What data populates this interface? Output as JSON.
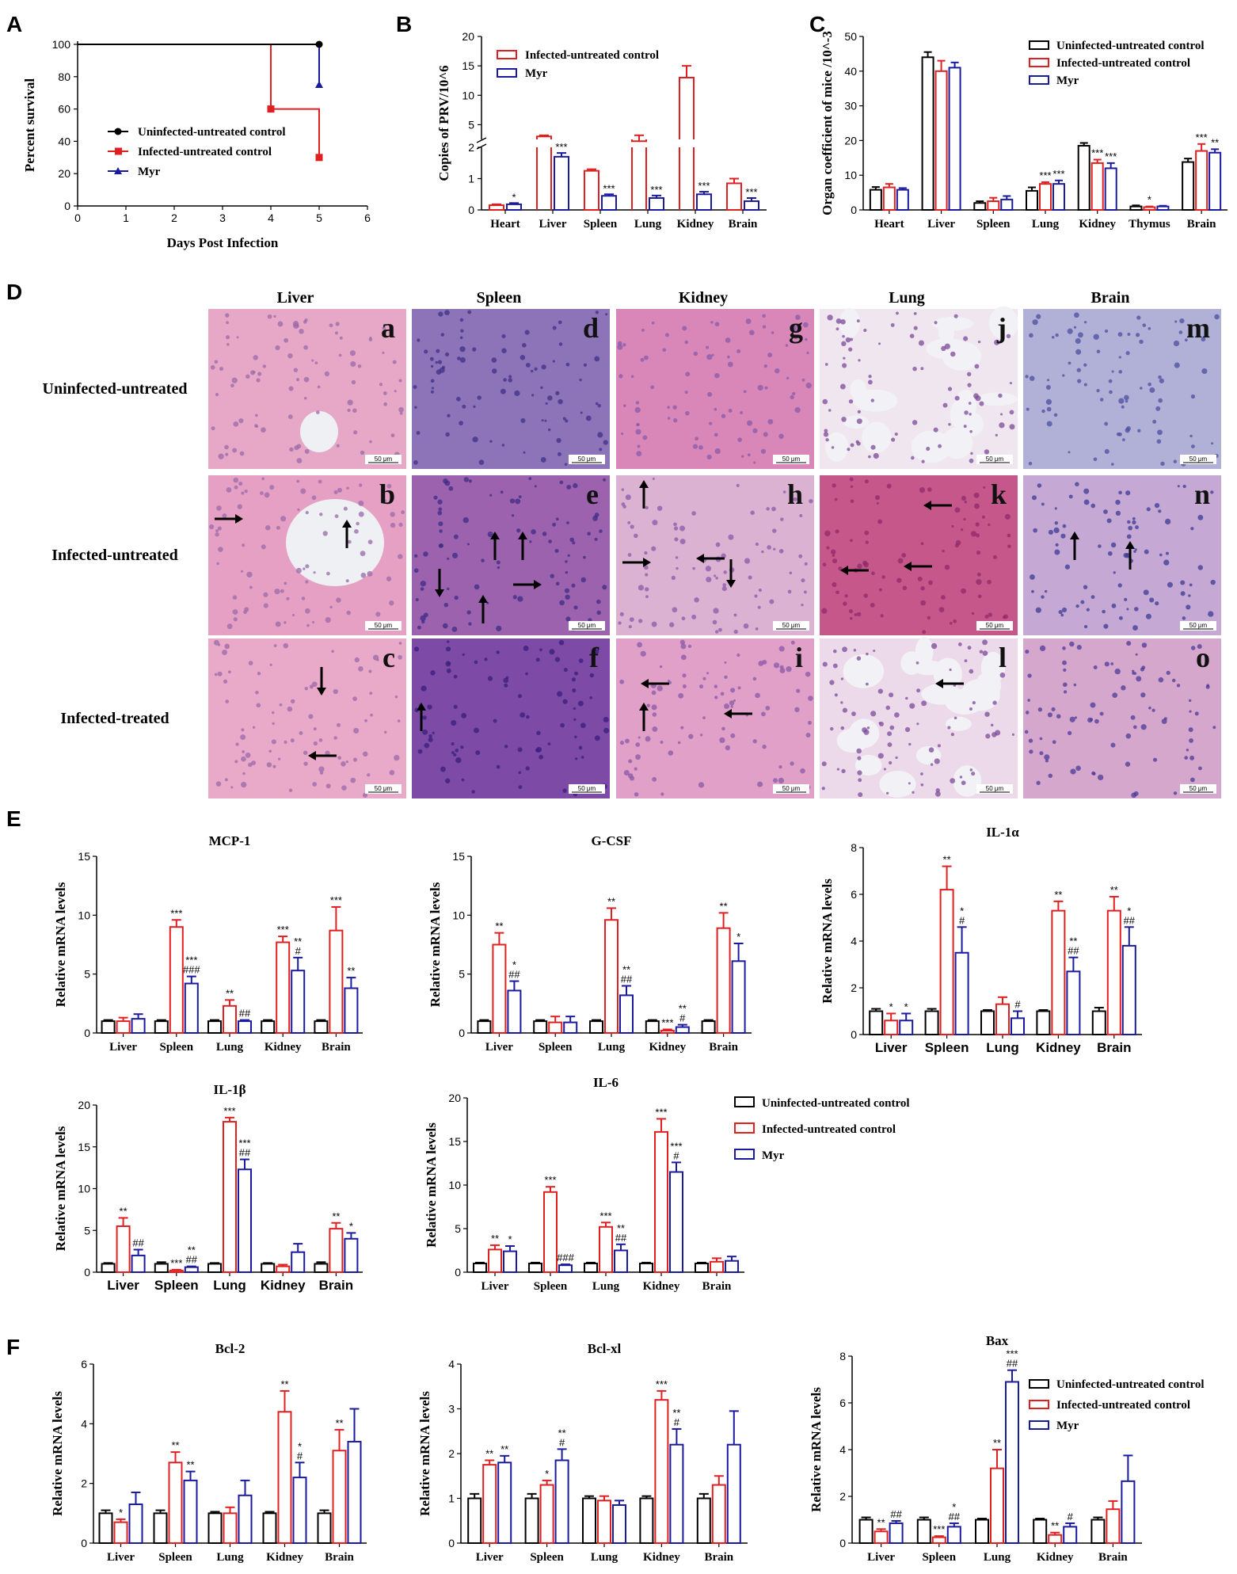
{
  "colors": {
    "uninfected": "#000000",
    "infected": "#e02020",
    "myr": "#1a1a9e"
  },
  "panel_letters": [
    "A",
    "B",
    "C",
    "D",
    "E",
    "F"
  ],
  "legend_labels": {
    "uninfected": "Uninfected-untreated control",
    "infected": "Infected-untreated control",
    "myr": "Myr"
  },
  "histology": {
    "columns": [
      "Liver",
      "Spleen",
      "Kidney",
      "Lung",
      "Brain"
    ],
    "rows": [
      "Uninfected-untreated",
      "Infected-untreated",
      "Infected-treated"
    ],
    "letters": [
      [
        "a",
        "d",
        "g",
        "j",
        "m"
      ],
      [
        "b",
        "e",
        "h",
        "k",
        "n"
      ],
      [
        "c",
        "f",
        "i",
        "l",
        "o"
      ]
    ],
    "scale_bar": "50 μm"
  },
  "chart_data": [
    {
      "id": "A",
      "type": "line",
      "xlabel": "Days Post Infection",
      "ylabel": "Percent survival",
      "xlim": [
        0,
        6
      ],
      "ylim": [
        0,
        100
      ],
      "xticks": [
        "0",
        "1",
        "2",
        "3",
        "4",
        "5",
        "6"
      ],
      "yticks": [
        "0",
        "20",
        "40",
        "60",
        "80",
        "100"
      ],
      "legend": "inside-right",
      "series": [
        {
          "name": "Uninfected-untreated control",
          "marker": "circle",
          "x": [
            0,
            5
          ],
          "y": [
            100,
            100
          ]
        },
        {
          "name": "Infected-untreated control",
          "marker": "square",
          "x": [
            0,
            4,
            4,
            5,
            5
          ],
          "y": [
            100,
            100,
            60,
            60,
            30
          ]
        },
        {
          "name": "Myr",
          "marker": "triangle",
          "x": [
            0,
            5,
            5
          ],
          "y": [
            100,
            100,
            75
          ]
        }
      ]
    },
    {
      "id": "B",
      "type": "bar",
      "ylabel": "Copies of PRV/10^6",
      "broken_axis": true,
      "yticks_upper": [
        "5",
        "10",
        "15",
        "20"
      ],
      "yticks_lower": [
        "0",
        "1",
        "2"
      ],
      "categories": [
        "Heart",
        "Liver",
        "Spleen",
        "Lung",
        "Kidney",
        "Brain"
      ],
      "series": [
        {
          "name": "Infected-untreated control",
          "values": [
            0.15,
            3.0,
            1.25,
            2.2,
            13.0,
            0.85
          ],
          "errors": [
            0.03,
            0.2,
            0.05,
            1.0,
            2.0,
            0.15
          ]
        },
        {
          "name": "Myr",
          "values": [
            0.18,
            1.7,
            0.45,
            0.38,
            0.5,
            0.28
          ],
          "errors": [
            0.04,
            0.12,
            0.05,
            0.08,
            0.08,
            0.1
          ]
        }
      ],
      "significance": {
        "Myr": [
          "*",
          "***",
          "***",
          "***",
          "***",
          "***"
        ]
      }
    },
    {
      "id": "C",
      "type": "bar",
      "ylabel": "Organ coefficient of mice /10^-3",
      "ylim": [
        0,
        50
      ],
      "yticks": [
        "0",
        "10",
        "20",
        "30",
        "40",
        "50"
      ],
      "categories": [
        "Heart",
        "Liver",
        "Spleen",
        "Lung",
        "Kidney",
        "Thymus",
        "Brain"
      ],
      "series": [
        {
          "name": "Uninfected-untreated control",
          "values": [
            5.8,
            44.0,
            2.0,
            5.5,
            18.5,
            1.0,
            13.8
          ],
          "errors": [
            0.8,
            1.5,
            0.5,
            1.0,
            0.8,
            0.3,
            1.0
          ]
        },
        {
          "name": "Infected-untreated control",
          "values": [
            6.5,
            40.0,
            2.5,
            7.5,
            13.5,
            0.8,
            17.0
          ],
          "errors": [
            1.0,
            3.0,
            1.0,
            0.5,
            1.0,
            0.2,
            2.0
          ]
        },
        {
          "name": "Myr",
          "values": [
            5.8,
            41.0,
            3.0,
            7.5,
            12.0,
            1.0,
            16.5
          ],
          "errors": [
            0.5,
            1.5,
            1.0,
            1.0,
            1.5,
            0.2,
            1.0
          ]
        }
      ],
      "significance": {
        "Infected-untreated control": [
          "",
          "",
          "",
          "***",
          "***",
          "*",
          "***"
        ],
        "Myr": [
          "",
          "",
          "",
          "***",
          "***",
          "",
          "**"
        ]
      }
    },
    {
      "id": "E1",
      "type": "bar",
      "title": "MCP-1",
      "ylabel": "Relative mRNA levels",
      "ylim": [
        0,
        15
      ],
      "yticks": [
        "0",
        "5",
        "10",
        "15"
      ],
      "categories": [
        "Liver",
        "Spleen",
        "Lung",
        "Kidney",
        "Brain"
      ],
      "series": [
        {
          "name": "Uninfected-untreated control",
          "values": [
            1.0,
            1.0,
            1.0,
            1.0,
            1.0
          ],
          "errors": [
            0.1,
            0.1,
            0.1,
            0.1,
            0.1
          ]
        },
        {
          "name": "Infected-untreated control",
          "values": [
            1.0,
            9.0,
            2.3,
            7.7,
            8.7
          ],
          "errors": [
            0.3,
            0.6,
            0.5,
            0.5,
            2.0
          ]
        },
        {
          "name": "Myr",
          "values": [
            1.2,
            4.2,
            1.0,
            5.3,
            3.8
          ],
          "errors": [
            0.4,
            0.6,
            0.1,
            1.1,
            0.9
          ]
        }
      ],
      "significance": {
        "Infected-untreated control": [
          "",
          "***",
          "**",
          "***",
          "***"
        ],
        "Myr": [
          "",
          "***\n###",
          "##",
          "**\n#",
          "**"
        ]
      }
    },
    {
      "id": "E2",
      "type": "bar",
      "title": "G-CSF",
      "ylabel": "Relative mRNA levels",
      "ylim": [
        0,
        15
      ],
      "yticks": [
        "0",
        "5",
        "10",
        "15"
      ],
      "categories": [
        "Liver",
        "Spleen",
        "Lung",
        "Kidney",
        "Brain"
      ],
      "series": [
        {
          "name": "Uninfected-untreated control",
          "values": [
            1.0,
            1.0,
            1.0,
            1.0,
            1.0
          ],
          "errors": [
            0.1,
            0.1,
            0.1,
            0.1,
            0.1
          ]
        },
        {
          "name": "Infected-untreated control",
          "values": [
            7.5,
            0.9,
            9.6,
            0.2,
            8.9
          ],
          "errors": [
            1.0,
            0.5,
            1.0,
            0.1,
            1.3
          ]
        },
        {
          "name": "Myr",
          "values": [
            3.6,
            0.9,
            3.2,
            0.5,
            6.1
          ],
          "errors": [
            0.8,
            0.5,
            0.8,
            0.2,
            1.5
          ]
        }
      ],
      "significance": {
        "Infected-untreated control": [
          "**",
          "",
          "**",
          "***",
          "**"
        ],
        "Myr": [
          "*\n##",
          "",
          "**\n##",
          "**\n#",
          "*"
        ]
      }
    },
    {
      "id": "E3",
      "type": "bar",
      "title": "IL-1α",
      "ylabel": "Relative mRNA levels",
      "ylim": [
        0,
        8
      ],
      "yticks": [
        "0",
        "2",
        "4",
        "6",
        "8"
      ],
      "categories": [
        "Liver",
        "Spleen",
        "Lung",
        "Kidney",
        "Brain"
      ],
      "series": [
        {
          "name": "Uninfected-untreated control",
          "values": [
            1.0,
            1.0,
            1.0,
            1.0,
            1.0
          ],
          "errors": [
            0.1,
            0.1,
            0.05,
            0.05,
            0.15
          ]
        },
        {
          "name": "Infected-untreated control",
          "values": [
            0.6,
            6.2,
            1.3,
            5.3,
            5.3
          ],
          "errors": [
            0.3,
            1.0,
            0.3,
            0.4,
            0.6
          ]
        },
        {
          "name": "Myr",
          "values": [
            0.6,
            3.5,
            0.7,
            2.7,
            3.8
          ],
          "errors": [
            0.3,
            1.1,
            0.3,
            0.6,
            0.8
          ]
        }
      ],
      "significance": {
        "Infected-untreated control": [
          "*",
          "**",
          "",
          "**",
          "**"
        ],
        "Myr": [
          "*",
          "*\n#",
          "#",
          "**\n##",
          "*\n##"
        ]
      }
    },
    {
      "id": "E4",
      "type": "bar",
      "title": "IL-1β",
      "ylabel": "Relative mRNA levels",
      "ylim": [
        0,
        20
      ],
      "yticks": [
        "0",
        "5",
        "10",
        "15",
        "20"
      ],
      "categories": [
        "Liver",
        "Spleen",
        "Lung",
        "Kidney",
        "Brain"
      ],
      "series": [
        {
          "name": "Uninfected-untreated control",
          "values": [
            1.0,
            1.0,
            1.0,
            1.0,
            1.0
          ],
          "errors": [
            0.1,
            0.2,
            0.1,
            0.1,
            0.2
          ]
        },
        {
          "name": "Infected-untreated control",
          "values": [
            5.5,
            0.2,
            18.0,
            0.7,
            5.2
          ],
          "errors": [
            1.0,
            0.1,
            0.5,
            0.2,
            0.7
          ]
        },
        {
          "name": "Myr",
          "values": [
            2.0,
            0.6,
            12.3,
            2.4,
            4.0
          ],
          "errors": [
            0.7,
            0.1,
            1.2,
            1.0,
            0.7
          ]
        }
      ],
      "significance": {
        "Infected-untreated control": [
          "**",
          "***",
          "***",
          "",
          "**"
        ],
        "Myr": [
          "##",
          "**\n##",
          "***\n##",
          "",
          "*"
        ]
      }
    },
    {
      "id": "E5",
      "type": "bar",
      "title": "IL-6",
      "ylabel": "Relative mRNA levels",
      "ylim": [
        0,
        20
      ],
      "yticks": [
        "0",
        "5",
        "10",
        "15",
        "20"
      ],
      "categories": [
        "Liver",
        "Spleen",
        "Lung",
        "Kidney",
        "Brain"
      ],
      "series": [
        {
          "name": "Uninfected-untreated control",
          "values": [
            1.0,
            1.0,
            1.0,
            1.0,
            1.0
          ],
          "errors": [
            0.1,
            0.1,
            0.1,
            0.1,
            0.1
          ]
        },
        {
          "name": "Infected-untreated control",
          "values": [
            2.6,
            9.2,
            5.2,
            16.1,
            1.2
          ],
          "errors": [
            0.5,
            0.6,
            0.5,
            1.5,
            0.4
          ]
        },
        {
          "name": "Myr",
          "values": [
            2.4,
            0.8,
            2.5,
            11.5,
            1.3
          ],
          "errors": [
            0.6,
            0.1,
            0.7,
            1.1,
            0.5
          ]
        }
      ],
      "significance": {
        "Infected-untreated control": [
          "**",
          "***",
          "***",
          "***",
          ""
        ],
        "Myr": [
          "*",
          "###",
          "**\n##",
          "***\n#",
          ""
        ]
      }
    },
    {
      "id": "F1",
      "type": "bar",
      "title": "Bcl-2",
      "ylabel": "Relative mRNA levels",
      "ylim": [
        0,
        6
      ],
      "yticks": [
        "0",
        "2",
        "4",
        "6"
      ],
      "categories": [
        "Liver",
        "Spleen",
        "Lung",
        "Kidney",
        "Brain"
      ],
      "series": [
        {
          "name": "Uninfected-untreated control",
          "values": [
            1.0,
            1.0,
            1.0,
            1.0,
            1.0
          ],
          "errors": [
            0.1,
            0.1,
            0.05,
            0.05,
            0.1
          ]
        },
        {
          "name": "Infected-untreated control",
          "values": [
            0.7,
            2.7,
            1.0,
            4.4,
            3.1
          ],
          "errors": [
            0.1,
            0.35,
            0.2,
            0.7,
            0.7
          ]
        },
        {
          "name": "Myr",
          "values": [
            1.3,
            2.1,
            1.6,
            2.2,
            3.4
          ],
          "errors": [
            0.4,
            0.3,
            0.5,
            0.5,
            1.1
          ]
        }
      ],
      "significance": {
        "Infected-untreated control": [
          "*",
          "**",
          "",
          "**",
          "**"
        ],
        "Myr": [
          "",
          "**",
          "",
          "*\n#",
          ""
        ]
      }
    },
    {
      "id": "F2",
      "type": "bar",
      "title": "Bcl-xl",
      "ylabel": "Relative mRNA levels",
      "ylim": [
        0,
        4
      ],
      "yticks": [
        "0",
        "1",
        "2",
        "3",
        "4"
      ],
      "categories": [
        "Liver",
        "Spleen",
        "Lung",
        "Kidney",
        "Brain"
      ],
      "series": [
        {
          "name": "Uninfected-untreated control",
          "values": [
            1.0,
            1.0,
            1.0,
            1.0,
            1.0
          ],
          "errors": [
            0.1,
            0.1,
            0.05,
            0.05,
            0.1
          ]
        },
        {
          "name": "Infected-untreated control",
          "values": [
            1.75,
            1.3,
            0.95,
            3.2,
            1.3
          ],
          "errors": [
            0.1,
            0.1,
            0.1,
            0.2,
            0.2
          ]
        },
        {
          "name": "Myr",
          "values": [
            1.8,
            1.85,
            0.85,
            2.2,
            2.2
          ],
          "errors": [
            0.15,
            0.25,
            0.1,
            0.35,
            0.75
          ]
        }
      ],
      "significance": {
        "Infected-untreated control": [
          "**",
          "*",
          "",
          "***",
          ""
        ],
        "Myr": [
          "**",
          "**\n#",
          "",
          "**\n#",
          ""
        ]
      }
    },
    {
      "id": "F3",
      "type": "bar",
      "title": "Bax",
      "ylabel": "Relative mRNA levels",
      "ylim": [
        0,
        8
      ],
      "yticks": [
        "0",
        "2",
        "4",
        "6",
        "8"
      ],
      "categories": [
        "Liver",
        "Spleen",
        "Lung",
        "Kidney",
        "Brain"
      ],
      "series": [
        {
          "name": "Uninfected-untreated control",
          "values": [
            1.0,
            1.0,
            1.0,
            1.0,
            1.0
          ],
          "errors": [
            0.1,
            0.1,
            0.05,
            0.05,
            0.1
          ]
        },
        {
          "name": "Infected-untreated control",
          "values": [
            0.5,
            0.25,
            3.2,
            0.35,
            1.45
          ],
          "errors": [
            0.1,
            0.05,
            0.8,
            0.1,
            0.35
          ]
        },
        {
          "name": "Myr",
          "values": [
            0.85,
            0.7,
            6.9,
            0.7,
            2.65
          ],
          "errors": [
            0.1,
            0.15,
            0.5,
            0.15,
            1.1
          ]
        }
      ],
      "significance": {
        "Infected-untreated control": [
          "**",
          "***",
          "**",
          "**",
          ""
        ],
        "Myr": [
          "##",
          "*\n##",
          "***\n##",
          "#",
          ""
        ]
      }
    }
  ]
}
